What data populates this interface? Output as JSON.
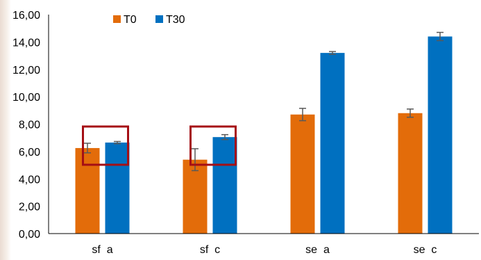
{
  "chart_data": {
    "type": "bar",
    "categories": [
      "sf  a",
      "sf  c",
      "se  a",
      "se  c"
    ],
    "series": [
      {
        "name": "T0",
        "color": "#E36C0A",
        "values": [
          6.25,
          5.4,
          8.7,
          8.8
        ],
        "errors": [
          0.35,
          0.8,
          0.45,
          0.3
        ]
      },
      {
        "name": "T30",
        "color": "#0070C0",
        "values": [
          6.65,
          7.05,
          13.2,
          14.4
        ],
        "errors": [
          0.08,
          0.18,
          0.1,
          0.3
        ]
      }
    ],
    "ylim": [
      0,
      16
    ],
    "yticks": [
      0,
      2,
      4,
      6,
      8,
      10,
      12,
      14,
      16
    ],
    "ytick_labels": [
      "0,00",
      "2,00",
      "4,00",
      "6,00",
      "8,00",
      "10,00",
      "12,00",
      "14,00",
      "16,00"
    ],
    "title": "",
    "xlabel": "",
    "ylabel": "",
    "grid": false,
    "legend_position": "top-left",
    "highlight_categories": [
      "sf  a",
      "sf  c"
    ],
    "highlight_color": "#A50F15"
  }
}
